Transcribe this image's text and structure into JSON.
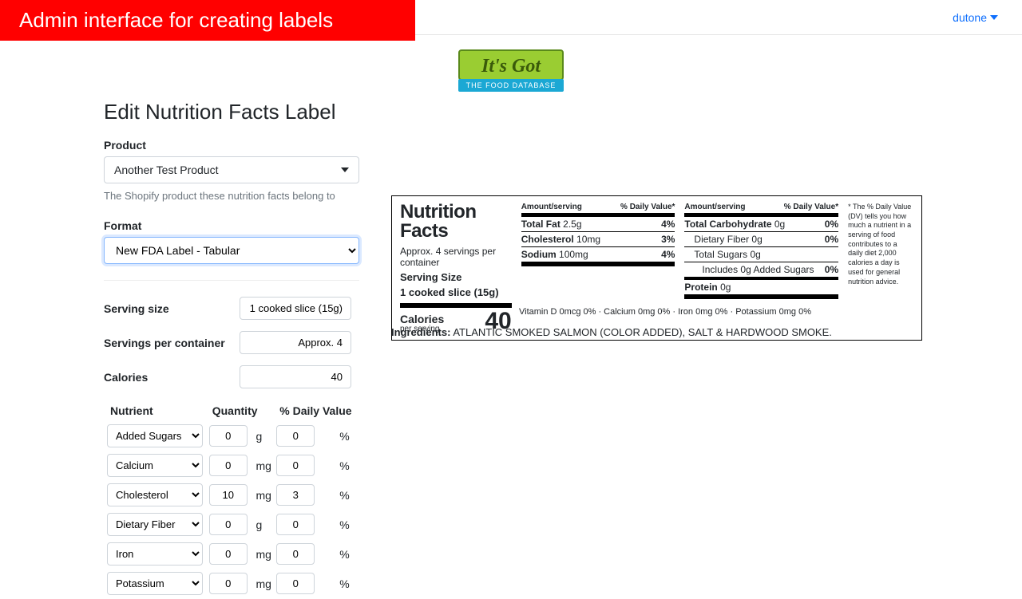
{
  "banner": "Admin interface for creating labels",
  "topbar": {
    "user": "dutone"
  },
  "logo": {
    "main": "It's Got",
    "sub": "THE FOOD DATABASE"
  },
  "page_title": "Edit Nutrition Facts Label",
  "product_field": {
    "label": "Product",
    "selected": "Another Test Product",
    "help": "The Shopify product these nutrition facts belong to"
  },
  "format_field": {
    "label": "Format",
    "selected": "New FDA Label - Tabular"
  },
  "basics": {
    "serving_size": {
      "label": "Serving size",
      "value": "1 cooked slice (15g)"
    },
    "servings_per_container": {
      "label": "Servings per container",
      "value": "Approx. 4"
    },
    "calories": {
      "label": "Calories",
      "value": "40"
    }
  },
  "nutrient_headers": {
    "nutrient": "Nutrient",
    "quantity": "Quantity",
    "daily_value": "% Daily Value"
  },
  "nutrients": [
    {
      "name": "Added Sugars",
      "qty": "0",
      "unit": "g",
      "dv": "0"
    },
    {
      "name": "Calcium",
      "qty": "0",
      "unit": "mg",
      "dv": "0"
    },
    {
      "name": "Cholesterol",
      "qty": "10",
      "unit": "mg",
      "dv": "3"
    },
    {
      "name": "Dietary Fiber",
      "qty": "0",
      "unit": "g",
      "dv": "0"
    },
    {
      "name": "Iron",
      "qty": "0",
      "unit": "mg",
      "dv": "0"
    },
    {
      "name": "Potassium",
      "qty": "0",
      "unit": "mg",
      "dv": "0"
    }
  ],
  "label": {
    "title1": "Nutrition",
    "title2": "Facts",
    "servings_text": "Approx. 4 servings per container",
    "serving_size_label": "Serving Size",
    "serving_size_value": "1 cooked slice (15g)",
    "calories_label": "Calories",
    "per_serving": "per serving",
    "calories_value": "40",
    "head_amount": "Amount/serving",
    "head_dv": "% Daily Value*",
    "col1": [
      {
        "name": "Total Fat",
        "amt": "2.5g",
        "dv": "4%",
        "bold": true
      },
      {
        "name": "Cholesterol",
        "amt": "10mg",
        "dv": "3%",
        "bold": true
      },
      {
        "name": "Sodium",
        "amt": "100mg",
        "dv": "4%",
        "bold": true
      }
    ],
    "col2": [
      {
        "name": "Total Carbohydrate",
        "amt": "0g",
        "dv": "0%",
        "bold": true,
        "indent": 0
      },
      {
        "name": "Dietary Fiber",
        "amt": "0g",
        "dv": "0%",
        "bold": false,
        "indent": 1
      },
      {
        "name": "Total Sugars",
        "amt": "0g",
        "dv": "",
        "bold": false,
        "indent": 1
      },
      {
        "name": "Includes 0g Added Sugars",
        "amt": "",
        "dv": "0%",
        "bold": false,
        "indent": 2
      },
      {
        "name": "Protein",
        "amt": "0g",
        "dv": "",
        "bold": true,
        "indent": 0
      }
    ],
    "vitamins": "Vitamin D 0mcg 0%  ·  Calcium 0mg 0%  ·  Iron 0mg 0%  ·  Potassium 0mg 0%",
    "dv_note": "* The % Daily Value (DV) tells you how much a nutrient in a serving of food contributes to a daily diet 2,000 calories a day is used for general nutrition advice."
  },
  "ingredients": {
    "label": "Ingredients:",
    "text": "ATLANTIC SMOKED SALMON (COLOR ADDED), SALT & HARDWOOD SMOKE."
  }
}
